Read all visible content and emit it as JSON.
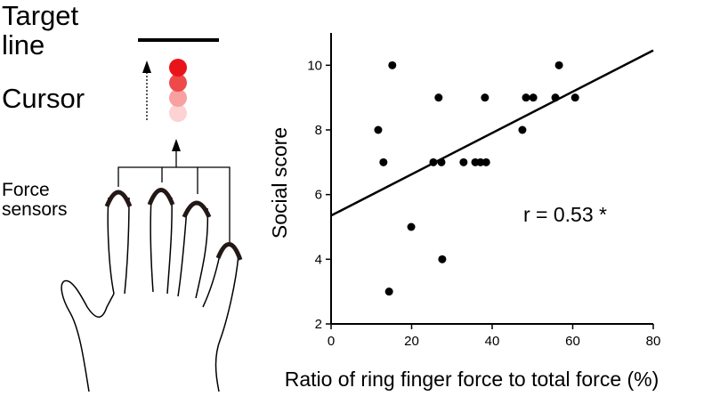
{
  "diagram": {
    "target_label": "Target line",
    "cursor_label": "Cursor",
    "sensor_label": "Force sensors"
  },
  "chart_data": {
    "type": "scatter",
    "x_label": "Ratio of ring finger force to total force (%)",
    "y_label": "Social score",
    "annotation": "r = 0.53 *",
    "series": [
      {
        "color": "#000000",
        "x": [
          15.2,
          56.6,
          26.7,
          38.2,
          48.4,
          50.2,
          55.7,
          60.6,
          11.7,
          47.5,
          13.0,
          25.4,
          27.4,
          32.9,
          35.8,
          37.1,
          38.5,
          19.9,
          27.6,
          14.4
        ],
        "values": [
          10,
          10,
          9,
          9,
          9,
          9,
          9,
          9,
          8,
          8,
          7,
          7,
          7,
          7,
          7,
          7,
          7,
          5,
          4,
          3
        ]
      }
    ],
    "fit": {
      "x": [
        0,
        80
      ],
      "values": [
        5.35,
        10.46
      ]
    },
    "xlim": [
      0,
      80
    ],
    "xticks": [
      0,
      20,
      40,
      60,
      80
    ],
    "ylim": [
      2,
      11
    ],
    "yticks": [
      2,
      4,
      6,
      8,
      10
    ]
  }
}
